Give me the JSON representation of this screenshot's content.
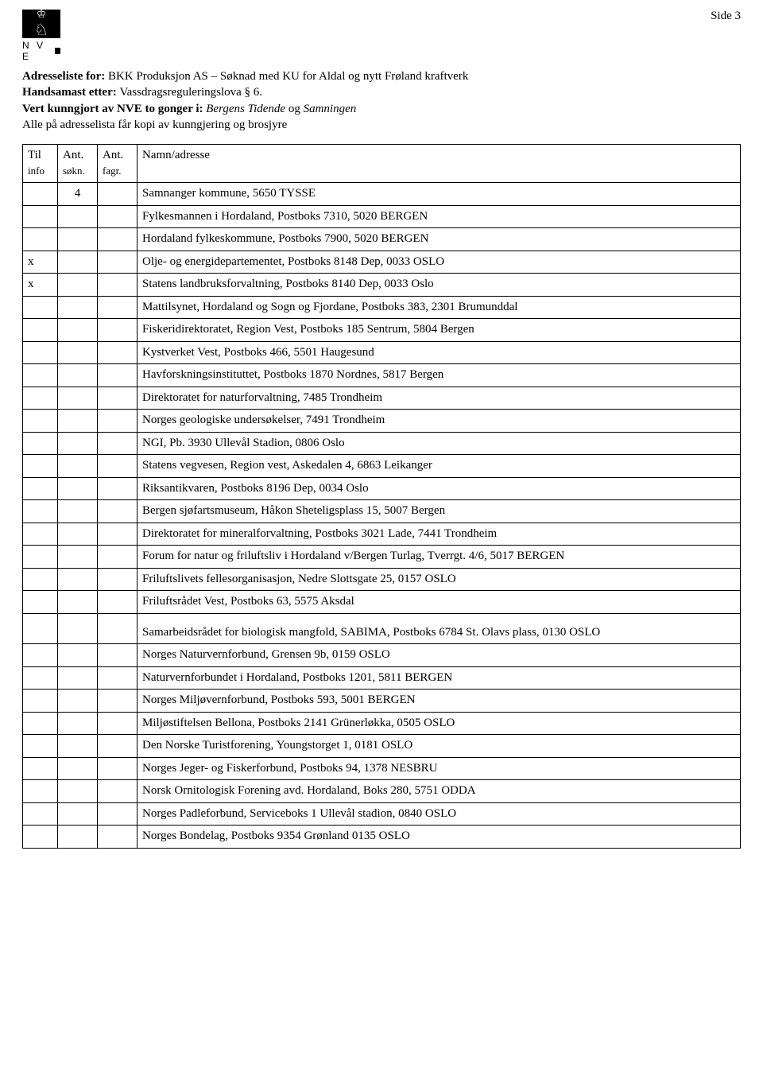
{
  "page": {
    "side_label": "Side 3"
  },
  "logo": {
    "letters": "N V E"
  },
  "intro": {
    "line1_bold": "Adresseliste for: ",
    "line1_rest": "BKK Produksjon AS – Søknad med KU for Aldal og nytt Frøland kraftverk",
    "line2_bold": "Handsamast etter: ",
    "line2_rest": "Vassdragsreguleringslova § 6.",
    "line3_bold": "Vert kunngjort av NVE to gonger i: ",
    "line3_italic": "Bergens Tidende ",
    "line3_og": "og ",
    "line3_italic2": "Samningen",
    "line4": "Alle på adresselista får kopi av kunngjering og brosjyre"
  },
  "headers": {
    "c1a": "Til",
    "c1b": "info",
    "c2a": "Ant.",
    "c2b": "søkn.",
    "c3a": "Ant.",
    "c3b": "fagr.",
    "c4": "Namn/adresse"
  },
  "rows": [
    {
      "info": "",
      "sokn": "4",
      "fagr": "",
      "name": "Samnanger kommune, 5650 TYSSE"
    },
    {
      "info": "",
      "sokn": "",
      "fagr": "",
      "name": "Fylkesmannen i Hordaland, Postboks 7310, 5020 BERGEN"
    },
    {
      "info": "",
      "sokn": "",
      "fagr": "",
      "name": "Hordaland fylkeskommune, Postboks 7900, 5020 BERGEN"
    },
    {
      "info": "x",
      "sokn": "",
      "fagr": "",
      "name": "Olje- og energidepartementet, Postboks 8148 Dep, 0033 OSLO"
    },
    {
      "info": "x",
      "sokn": "",
      "fagr": "",
      "name": "Statens landbruksforvaltning, Postboks 8140 Dep, 0033 Oslo"
    },
    {
      "info": "",
      "sokn": "",
      "fagr": "",
      "name": "Mattilsynet, Hordaland og Sogn og Fjordane, Postboks 383, 2301 Brumunddal"
    },
    {
      "info": "",
      "sokn": "",
      "fagr": "",
      "name": "Fiskeridirektoratet, Region Vest, Postboks 185 Sentrum, 5804 Bergen"
    },
    {
      "info": "",
      "sokn": "",
      "fagr": "",
      "name": "Kystverket Vest, Postboks 466, 5501 Haugesund"
    },
    {
      "info": "",
      "sokn": "",
      "fagr": "",
      "name": "Havforskningsinstituttet, Postboks 1870 Nordnes, 5817 Bergen"
    },
    {
      "info": "",
      "sokn": "",
      "fagr": "",
      "name": "Direktoratet for naturforvaltning, 7485 Trondheim"
    },
    {
      "info": "",
      "sokn": "",
      "fagr": "",
      "name": "Norges geologiske undersøkelser, 7491 Trondheim"
    },
    {
      "info": "",
      "sokn": "",
      "fagr": "",
      "name": "NGI, Pb. 3930 Ullevål Stadion, 0806 Oslo"
    },
    {
      "info": "",
      "sokn": "",
      "fagr": "",
      "name": "Statens vegvesen, Region vest, Askedalen 4, 6863 Leikanger"
    },
    {
      "info": "",
      "sokn": "",
      "fagr": "",
      "name": "Riksantikvaren, Postboks 8196 Dep, 0034 Oslo"
    },
    {
      "info": "",
      "sokn": "",
      "fagr": "",
      "name": "Bergen sjøfartsmuseum, Håkon Sheteligsplass 15, 5007 Bergen"
    },
    {
      "info": "",
      "sokn": "",
      "fagr": "",
      "name": "Direktoratet for mineralforvaltning, Postboks 3021 Lade, 7441 Trondheim"
    },
    {
      "info": "",
      "sokn": "",
      "fagr": "",
      "name": "Forum for natur og friluftsliv i Hordaland v/Bergen Turlag, Tverrgt. 4/6, 5017 BERGEN"
    },
    {
      "info": "",
      "sokn": "",
      "fagr": "",
      "name": "Friluftslivets fellesorganisasjon, Nedre Slottsgate 25, 0157 OSLO"
    },
    {
      "info": "",
      "sokn": "",
      "fagr": "",
      "name": "Friluftsrådet Vest, Postboks 63, 5575 Aksdal"
    },
    {
      "info": "",
      "sokn": "",
      "fagr": "",
      "name": "Samarbeidsrådet for biologisk mangfold, SABIMA, Postboks 6784 St. Olavs plass, 0130 OSLO",
      "gap": true
    },
    {
      "info": "",
      "sokn": "",
      "fagr": "",
      "name": "Norges Naturvernforbund, Grensen 9b, 0159 OSLO"
    },
    {
      "info": "",
      "sokn": "",
      "fagr": "",
      "name": "Naturvernforbundet i Hordaland, Postboks 1201, 5811 BERGEN"
    },
    {
      "info": "",
      "sokn": "",
      "fagr": "",
      "name": "Norges Miljøvernforbund, Postboks 593, 5001 BERGEN"
    },
    {
      "info": "",
      "sokn": "",
      "fagr": "",
      "name": "Miljøstiftelsen Bellona, Postboks 2141 Grünerløkka, 0505 OSLO"
    },
    {
      "info": "",
      "sokn": "",
      "fagr": "",
      "name": "Den Norske Turistforening, Youngstorget 1, 0181 OSLO"
    },
    {
      "info": "",
      "sokn": "",
      "fagr": "",
      "name": "Norges Jeger- og Fiskerforbund, Postboks 94, 1378 NESBRU"
    },
    {
      "info": "",
      "sokn": "",
      "fagr": "",
      "name": "Norsk Ornitologisk Forening avd. Hordaland, Boks 280, 5751 ODDA"
    },
    {
      "info": "",
      "sokn": "",
      "fagr": "",
      "name": "Norges Padleforbund, Serviceboks 1 Ullevål stadion, 0840 OSLO"
    },
    {
      "info": "",
      "sokn": "",
      "fagr": "",
      "name": "Norges Bondelag, Postboks 9354 Grønland 0135 OSLO"
    }
  ]
}
